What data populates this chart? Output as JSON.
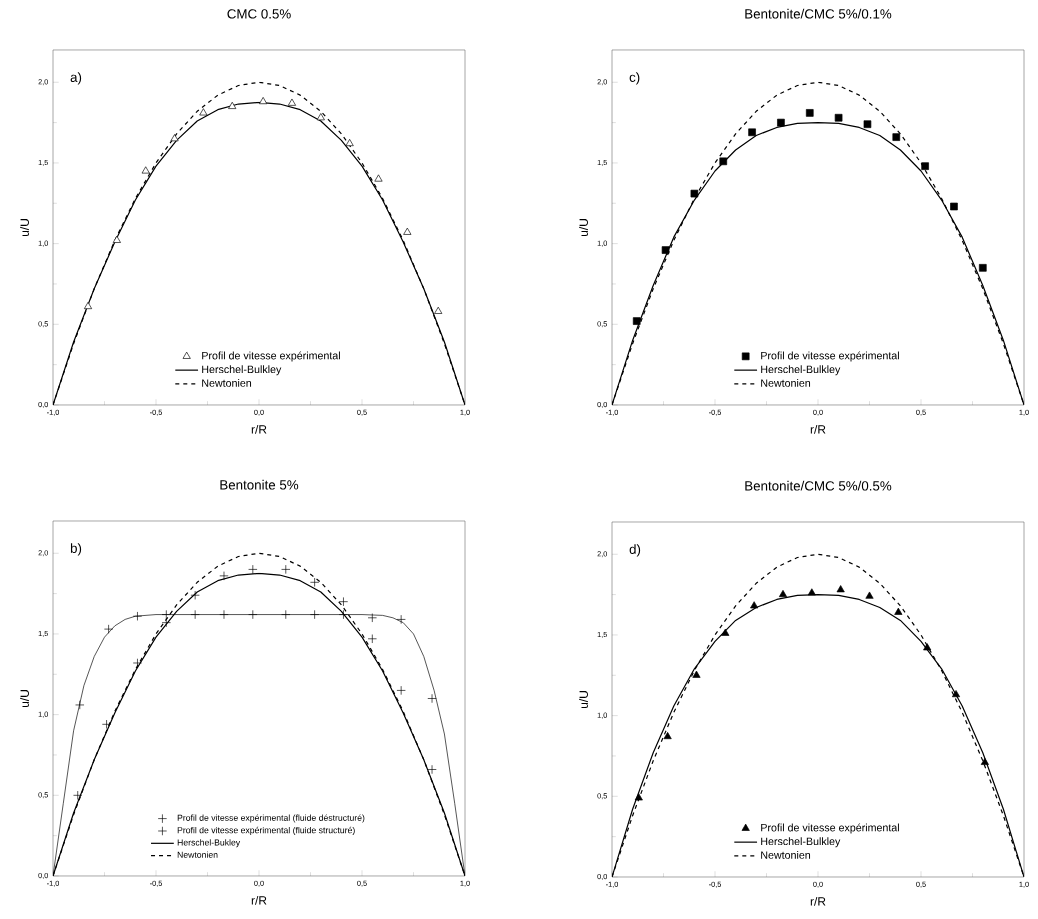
{
  "chart_data": [
    {
      "type": "line",
      "title": "CMC 0.5%",
      "xlabel": "r/R",
      "ylabel": "u/U",
      "annotations": [
        "a)"
      ],
      "legend": "bottom",
      "xlim": [
        -1,
        1
      ],
      "ylim": [
        0,
        2.2
      ],
      "xticks": [
        {
          "value": -1,
          "label": "-1,0"
        },
        {
          "value": -0.5,
          "label": "-0,5"
        },
        {
          "value": 0,
          "label": "0,0"
        },
        {
          "value": 0.5,
          "label": "0,5"
        },
        {
          "value": 1,
          "label": "1,0"
        }
      ],
      "yticks": [
        {
          "value": 0,
          "label": "0,0"
        },
        {
          "value": 0.5,
          "label": "0,5"
        },
        {
          "value": 1,
          "label": "1,0"
        },
        {
          "value": 1.5,
          "label": "1,5"
        },
        {
          "value": 2,
          "label": "2,0"
        }
      ],
      "series": [
        {
          "name": "Profil de vitesse expérimental",
          "type": "scatter",
          "marker": "triangle",
          "color": "#ffffff",
          "x": [
            -0.83,
            -0.69,
            -0.55,
            -0.41,
            -0.27,
            -0.13,
            0.02,
            0.16,
            0.3,
            0.44,
            0.58,
            0.72,
            0.87
          ],
          "values": [
            0.61,
            1.02,
            1.45,
            1.65,
            1.81,
            1.85,
            1.88,
            1.87,
            1.78,
            1.62,
            1.4,
            1.07,
            0.58
          ]
        },
        {
          "name": "Herschel-Bulkley",
          "line_style": "solid",
          "color": "#000000",
          "x": [
            -1,
            -0.9,
            -0.8,
            -0.7,
            -0.6,
            -0.5,
            -0.4,
            -0.3,
            -0.2,
            -0.1,
            0,
            0.1,
            0.2,
            0.3,
            0.4,
            0.5,
            0.6,
            0.7,
            0.8,
            0.9,
            1
          ],
          "values": [
            0,
            0.39,
            0.72,
            1.01,
            1.27,
            1.48,
            1.64,
            1.76,
            1.83,
            1.865,
            1.875,
            1.865,
            1.83,
            1.76,
            1.64,
            1.48,
            1.27,
            1.01,
            0.72,
            0.39,
            0
          ]
        },
        {
          "name": "Newtonien",
          "line_style": "dashed",
          "color": "#000000",
          "x": [
            -1,
            -0.9,
            -0.8,
            -0.7,
            -0.6,
            -0.5,
            -0.4,
            -0.3,
            -0.2,
            -0.1,
            0,
            0.1,
            0.2,
            0.3,
            0.4,
            0.5,
            0.6,
            0.7,
            0.8,
            0.9,
            1
          ],
          "values": [
            0,
            0.38,
            0.72,
            1.02,
            1.28,
            1.5,
            1.68,
            1.82,
            1.92,
            1.98,
            2.0,
            1.98,
            1.92,
            1.82,
            1.68,
            1.5,
            1.28,
            1.02,
            0.72,
            0.38,
            0
          ]
        }
      ]
    },
    {
      "type": "line",
      "title": "Bentonite/CMC 5%/0.1%",
      "xlabel": "r/R",
      "ylabel": "u/U",
      "annotations": [
        "c)"
      ],
      "legend": "bottom",
      "xlim": [
        -1,
        1
      ],
      "ylim": [
        0,
        2.2
      ],
      "xticks": [
        {
          "value": -1,
          "label": "-1,0"
        },
        {
          "value": -0.5,
          "label": "-0,5"
        },
        {
          "value": 0,
          "label": "0,0"
        },
        {
          "value": 0.5,
          "label": "0,5"
        },
        {
          "value": 1,
          "label": "1,0"
        }
      ],
      "yticks": [
        {
          "value": 0,
          "label": "0,0"
        },
        {
          "value": 0.5,
          "label": "0,5"
        },
        {
          "value": 1,
          "label": "1,0"
        },
        {
          "value": 1.5,
          "label": "1,5"
        },
        {
          "value": 2,
          "label": "2,0"
        }
      ],
      "series": [
        {
          "name": "Profil de vitesse expérimental",
          "type": "scatter",
          "marker": "square",
          "color": "#000000",
          "x": [
            -0.88,
            -0.74,
            -0.6,
            -0.46,
            -0.32,
            -0.18,
            -0.04,
            0.1,
            0.24,
            0.38,
            0.52,
            0.66,
            0.8
          ],
          "values": [
            0.52,
            0.96,
            1.31,
            1.51,
            1.69,
            1.75,
            1.81,
            1.78,
            1.74,
            1.66,
            1.48,
            1.23,
            0.85
          ]
        },
        {
          "name": "Herschel-Bulkley",
          "line_style": "solid",
          "color": "#000000",
          "x": [
            -1,
            -0.9,
            -0.8,
            -0.7,
            -0.6,
            -0.5,
            -0.4,
            -0.3,
            -0.2,
            -0.1,
            0,
            0.1,
            0.2,
            0.3,
            0.4,
            0.5,
            0.6,
            0.7,
            0.8,
            0.9,
            1
          ],
          "values": [
            0,
            0.4,
            0.74,
            1.04,
            1.27,
            1.45,
            1.58,
            1.67,
            1.72,
            1.745,
            1.75,
            1.745,
            1.72,
            1.67,
            1.58,
            1.45,
            1.27,
            1.04,
            0.74,
            0.4,
            0
          ]
        },
        {
          "name": "Newtonien",
          "line_style": "dashed",
          "color": "#000000",
          "x": [
            -1,
            -0.9,
            -0.8,
            -0.7,
            -0.6,
            -0.5,
            -0.4,
            -0.3,
            -0.2,
            -0.1,
            0,
            0.1,
            0.2,
            0.3,
            0.4,
            0.5,
            0.6,
            0.7,
            0.8,
            0.9,
            1
          ],
          "values": [
            0,
            0.38,
            0.72,
            1.02,
            1.28,
            1.5,
            1.68,
            1.82,
            1.92,
            1.98,
            2.0,
            1.98,
            1.92,
            1.82,
            1.68,
            1.5,
            1.28,
            1.02,
            0.72,
            0.38,
            0
          ]
        }
      ]
    },
    {
      "type": "line",
      "title": "Bentonite 5%",
      "xlabel": "r/R",
      "ylabel": "u/U",
      "annotations": [
        "b)"
      ],
      "legend": "bottom",
      "xlim": [
        -1,
        1
      ],
      "ylim": [
        0,
        2.2
      ],
      "xticks": [
        {
          "value": -1,
          "label": "-1,0"
        },
        {
          "value": -0.5,
          "label": "-0,5"
        },
        {
          "value": 0,
          "label": "0,0"
        },
        {
          "value": 0.5,
          "label": "0,5"
        },
        {
          "value": 1,
          "label": "1,0"
        }
      ],
      "yticks": [
        {
          "value": 0,
          "label": "0,0"
        },
        {
          "value": 0.5,
          "label": "0,5"
        },
        {
          "value": 1,
          "label": "1,0"
        },
        {
          "value": 1.5,
          "label": "1,5"
        },
        {
          "value": 2,
          "label": "2,0"
        }
      ],
      "series": [
        {
          "name": "Profil de vitesse expérimental (fluide déstructuré)",
          "type": "scatter",
          "marker": "cross",
          "color": "#000000",
          "x": [
            -0.88,
            -0.74,
            -0.59,
            -0.45,
            -0.31,
            -0.17,
            -0.03,
            0.13,
            0.27,
            0.41,
            0.55,
            0.69,
            0.84
          ],
          "values": [
            0.5,
            0.94,
            1.32,
            1.57,
            1.74,
            1.86,
            1.9,
            1.9,
            1.82,
            1.7,
            1.47,
            1.15,
            0.66
          ]
        },
        {
          "name": "Profil de vitesse expérimental (fluide structuré)",
          "type": "scatter",
          "marker": "cross",
          "color": "#000000",
          "x": [
            -0.87,
            -0.73,
            -0.59,
            -0.45,
            -0.31,
            -0.17,
            -0.03,
            0.13,
            0.27,
            0.41,
            0.55,
            0.69,
            0.84
          ],
          "values": [
            1.06,
            1.53,
            1.61,
            1.62,
            1.62,
            1.62,
            1.62,
            1.62,
            1.62,
            1.62,
            1.6,
            1.59,
            1.1
          ]
        },
        {
          "name": "Herschel-Bukley",
          "line_style": "solid",
          "color": "#000000",
          "x": [
            -1,
            -0.9,
            -0.8,
            -0.7,
            -0.6,
            -0.5,
            -0.4,
            -0.3,
            -0.2,
            -0.1,
            0,
            0.1,
            0.2,
            0.3,
            0.4,
            0.5,
            0.6,
            0.7,
            0.8,
            0.9,
            1
          ],
          "values": [
            0,
            0.39,
            0.72,
            1.01,
            1.27,
            1.48,
            1.64,
            1.76,
            1.83,
            1.865,
            1.875,
            1.865,
            1.83,
            1.76,
            1.64,
            1.48,
            1.27,
            1.01,
            0.72,
            0.39,
            0
          ]
        },
        {
          "name": "Newtonien",
          "line_style": "dashed",
          "color": "#000000",
          "x": [
            -1,
            -0.9,
            -0.8,
            -0.7,
            -0.6,
            -0.5,
            -0.4,
            -0.3,
            -0.2,
            -0.1,
            0,
            0.1,
            0.2,
            0.3,
            0.4,
            0.5,
            0.6,
            0.7,
            0.8,
            0.9,
            1
          ],
          "values": [
            0,
            0.38,
            0.72,
            1.02,
            1.28,
            1.5,
            1.68,
            1.82,
            1.92,
            1.98,
            2.0,
            1.98,
            1.92,
            1.82,
            1.68,
            1.5,
            1.28,
            1.02,
            0.72,
            0.38,
            0
          ]
        },
        {
          "line_style": "solid",
          "color": "#000000",
          "x": [
            -1,
            -0.95,
            -0.9,
            -0.85,
            -0.8,
            -0.75,
            -0.7,
            -0.65,
            -0.6,
            -0.5,
            0,
            0.5,
            0.6,
            0.65,
            0.7,
            0.75,
            0.8,
            0.85,
            0.9,
            0.95,
            1
          ],
          "values": [
            0,
            0.45,
            0.9,
            1.18,
            1.36,
            1.48,
            1.55,
            1.59,
            1.61,
            1.62,
            1.62,
            1.62,
            1.615,
            1.6,
            1.57,
            1.5,
            1.36,
            1.15,
            0.88,
            0.45,
            0
          ]
        }
      ]
    },
    {
      "type": "line",
      "title": "Bentonite/CMC 5%/0.5%",
      "xlabel": "r/R",
      "ylabel": "u/U",
      "annotations": [
        "d)"
      ],
      "legend": "bottom",
      "xlim": [
        -1,
        1
      ],
      "ylim": [
        0,
        2.2
      ],
      "xticks": [
        {
          "value": -1,
          "label": "-1,0"
        },
        {
          "value": -0.5,
          "label": "-0,5"
        },
        {
          "value": 0,
          "label": "0,0"
        },
        {
          "value": 0.5,
          "label": "0,5"
        },
        {
          "value": 1,
          "label": "1,0"
        }
      ],
      "yticks": [
        {
          "value": 0,
          "label": "0,0"
        },
        {
          "value": 0.5,
          "label": "0,5"
        },
        {
          "value": 1,
          "label": "1,0"
        },
        {
          "value": 1.5,
          "label": "1,5"
        },
        {
          "value": 2,
          "label": "2,0"
        }
      ],
      "series": [
        {
          "name": "Profil de vitesse expérimental",
          "type": "scatter",
          "marker": "triangle",
          "color": "#000000",
          "x": [
            -0.87,
            -0.73,
            -0.59,
            -0.45,
            -0.31,
            -0.17,
            -0.03,
            0.11,
            0.25,
            0.39,
            0.53,
            0.67,
            0.81
          ],
          "values": [
            0.49,
            0.87,
            1.25,
            1.51,
            1.68,
            1.75,
            1.76,
            1.78,
            1.74,
            1.64,
            1.42,
            1.13,
            0.71
          ]
        },
        {
          "name": "Herschel-Bulkley",
          "line_style": "solid",
          "color": "#000000",
          "x": [
            -1,
            -0.9,
            -0.8,
            -0.7,
            -0.6,
            -0.5,
            -0.4,
            -0.3,
            -0.2,
            -0.1,
            0,
            0.1,
            0.2,
            0.3,
            0.4,
            0.5,
            0.6,
            0.7,
            0.8,
            0.9,
            1
          ],
          "values": [
            0,
            0.42,
            0.77,
            1.06,
            1.29,
            1.46,
            1.59,
            1.67,
            1.72,
            1.745,
            1.75,
            1.745,
            1.72,
            1.67,
            1.59,
            1.46,
            1.29,
            1.06,
            0.77,
            0.42,
            0
          ]
        },
        {
          "name": "Newtonien",
          "line_style": "dashed",
          "color": "#000000",
          "x": [
            -1,
            -0.9,
            -0.8,
            -0.7,
            -0.6,
            -0.5,
            -0.4,
            -0.3,
            -0.2,
            -0.1,
            0,
            0.1,
            0.2,
            0.3,
            0.4,
            0.5,
            0.6,
            0.7,
            0.8,
            0.9,
            1
          ],
          "values": [
            0,
            0.38,
            0.72,
            1.02,
            1.28,
            1.5,
            1.68,
            1.82,
            1.92,
            1.98,
            2.0,
            1.98,
            1.92,
            1.82,
            1.68,
            1.5,
            1.28,
            1.02,
            0.72,
            0.38,
            0
          ]
        }
      ]
    }
  ]
}
